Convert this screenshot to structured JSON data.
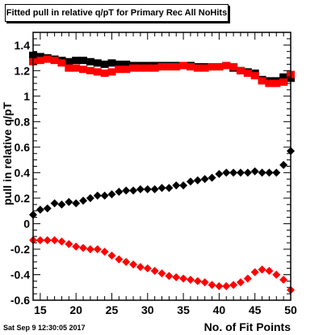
{
  "chart_data": {
    "type": "scatter",
    "title": "Fitted pull in relative q/pT for Primary Rec All NoHits",
    "xlabel": "No. of Fit Points",
    "ylabel": "pull in relative q/pT",
    "xlim": [
      14,
      50
    ],
    "ylim": [
      -0.6,
      1.5
    ],
    "x_ticks": [
      15,
      20,
      25,
      30,
      35,
      40,
      45,
      50
    ],
    "y_ticks": [
      -0.6,
      -0.4,
      -0.2,
      0,
      0.2,
      0.4,
      0.6,
      0.8,
      1,
      1.2,
      1.4
    ],
    "grid": false,
    "series": [
      {
        "marker": "square",
        "color": "#000000",
        "x": [
          14,
          15,
          16,
          17,
          18,
          19,
          20,
          21,
          22,
          23,
          24,
          25,
          26,
          27,
          28,
          29,
          30,
          31,
          32,
          33,
          34,
          35,
          36,
          37,
          38,
          39,
          40,
          41,
          42,
          43,
          44,
          45,
          46,
          47,
          48,
          49,
          50
        ],
        "y": [
          1.32,
          1.31,
          1.3,
          1.29,
          1.28,
          1.27,
          1.28,
          1.28,
          1.27,
          1.26,
          1.25,
          1.26,
          1.25,
          1.25,
          1.24,
          1.24,
          1.24,
          1.24,
          1.24,
          1.24,
          1.24,
          1.24,
          1.24,
          1.23,
          1.23,
          1.23,
          1.23,
          1.24,
          1.22,
          1.2,
          1.19,
          1.18,
          1.13,
          1.12,
          1.12,
          1.15,
          1.14
        ]
      },
      {
        "marker": "square",
        "color": "#ff0000",
        "x": [
          14,
          15,
          16,
          17,
          18,
          19,
          20,
          21,
          22,
          23,
          24,
          25,
          26,
          27,
          28,
          29,
          30,
          31,
          32,
          33,
          34,
          35,
          36,
          37,
          38,
          39,
          40,
          41,
          42,
          43,
          44,
          45,
          46,
          47,
          48,
          49,
          50
        ],
        "y": [
          1.27,
          1.28,
          1.29,
          1.28,
          1.26,
          1.22,
          1.22,
          1.21,
          1.2,
          1.19,
          1.18,
          1.19,
          1.21,
          1.21,
          1.22,
          1.22,
          1.22,
          1.22,
          1.23,
          1.23,
          1.23,
          1.24,
          1.23,
          1.22,
          1.22,
          1.23,
          1.23,
          1.24,
          1.23,
          1.2,
          1.18,
          1.16,
          1.12,
          1.1,
          1.1,
          1.11,
          1.17
        ]
      },
      {
        "marker": "diamond",
        "color": "#000000",
        "x": [
          14,
          15,
          16,
          17,
          18,
          19,
          20,
          21,
          22,
          23,
          24,
          25,
          26,
          27,
          28,
          29,
          30,
          31,
          32,
          33,
          34,
          35,
          36,
          37,
          38,
          39,
          40,
          41,
          42,
          43,
          44,
          45,
          46,
          47,
          48,
          49,
          50
        ],
        "y": [
          0.07,
          0.11,
          0.12,
          0.16,
          0.15,
          0.17,
          0.16,
          0.18,
          0.2,
          0.22,
          0.22,
          0.23,
          0.25,
          0.26,
          0.26,
          0.27,
          0.27,
          0.27,
          0.28,
          0.28,
          0.3,
          0.3,
          0.33,
          0.34,
          0.35,
          0.36,
          0.39,
          0.4,
          0.4,
          0.4,
          0.4,
          0.41,
          0.4,
          0.4,
          0.4,
          0.46,
          0.57
        ]
      },
      {
        "marker": "diamond",
        "color": "#ff0000",
        "x": [
          14,
          15,
          16,
          17,
          18,
          19,
          20,
          21,
          22,
          23,
          24,
          25,
          26,
          27,
          28,
          29,
          30,
          31,
          32,
          33,
          34,
          35,
          36,
          37,
          38,
          39,
          40,
          41,
          42,
          43,
          44,
          45,
          46,
          47,
          48,
          49,
          50
        ],
        "y": [
          -0.13,
          -0.13,
          -0.13,
          -0.13,
          -0.14,
          -0.16,
          -0.18,
          -0.19,
          -0.2,
          -0.2,
          -0.22,
          -0.25,
          -0.28,
          -0.3,
          -0.32,
          -0.34,
          -0.35,
          -0.37,
          -0.39,
          -0.41,
          -0.42,
          -0.43,
          -0.44,
          -0.45,
          -0.46,
          -0.48,
          -0.49,
          -0.49,
          -0.48,
          -0.46,
          -0.43,
          -0.38,
          -0.36,
          -0.37,
          -0.4,
          -0.44,
          -0.52
        ]
      }
    ]
  },
  "footer": {
    "timestamp": "Sat Sep  9 12:30:05 2017"
  }
}
